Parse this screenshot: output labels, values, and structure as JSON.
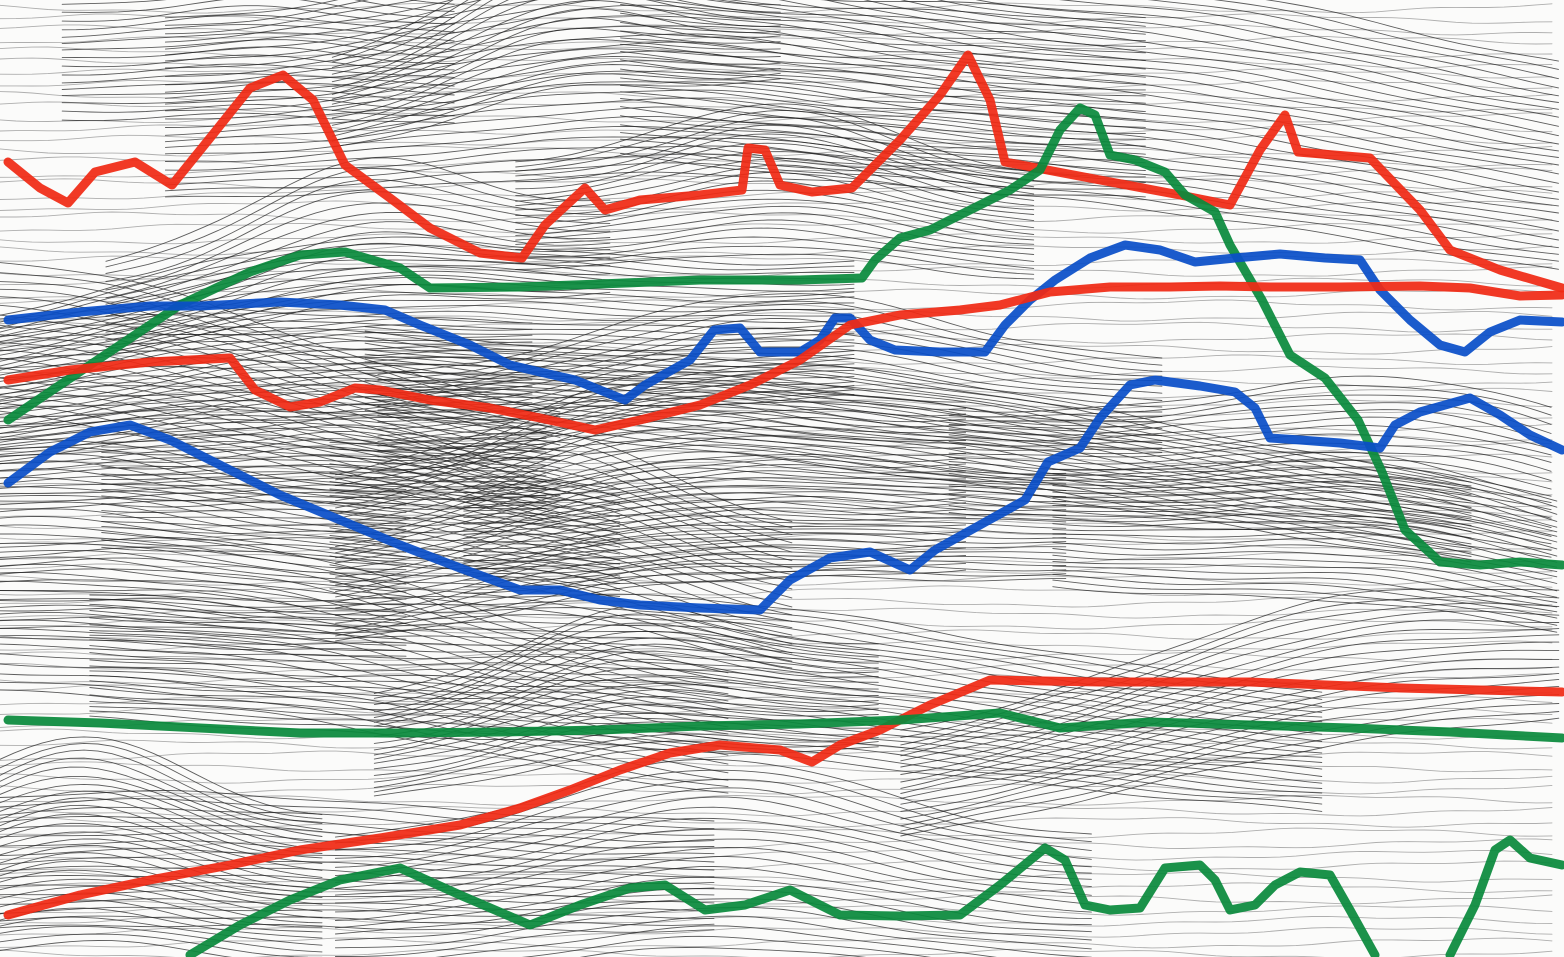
{
  "artwork": {
    "palette": {
      "background": "#fbfbfa",
      "ink": "#202020",
      "red": "#f02a14",
      "green": "#0a8a3c",
      "blue": "#0a4fc8"
    },
    "strokes": [
      {
        "color": "red"
      },
      {
        "color": "green"
      },
      {
        "color": "blue"
      },
      {
        "color": "red"
      },
      {
        "color": "blue"
      },
      {
        "color": "red"
      },
      {
        "color": "green"
      },
      {
        "color": "green"
      }
    ]
  }
}
